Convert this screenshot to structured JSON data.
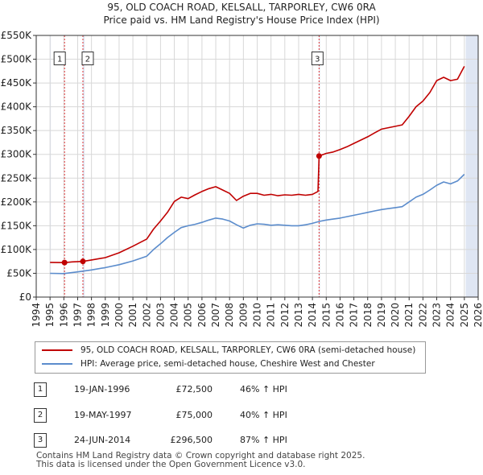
{
  "title_line1": "95, OLD COACH ROAD, KELSALL, TARPORLEY, CW6 0RA",
  "title_line2": "Price paid vs. HM Land Registry's House Price Index (HPI)",
  "colors": {
    "property": "#c00000",
    "hpi": "#5b8ccc",
    "sale_line": "#dd3333",
    "shade": "#dfe6f3",
    "grid": "#d8d8d8"
  },
  "chart_data": {
    "type": "line",
    "y_min": 0,
    "y_max": 550000,
    "x_min": 1994,
    "x_max": 2026,
    "y_ticks": [
      {
        "value": 0,
        "label": "£0"
      },
      {
        "value": 50000,
        "label": "£50K"
      },
      {
        "value": 100000,
        "label": "£100K"
      },
      {
        "value": 150000,
        "label": "£150K"
      },
      {
        "value": 200000,
        "label": "£200K"
      },
      {
        "value": 250000,
        "label": "£250K"
      },
      {
        "value": 300000,
        "label": "£300K"
      },
      {
        "value": 350000,
        "label": "£350K"
      },
      {
        "value": 400000,
        "label": "£400K"
      },
      {
        "value": 450000,
        "label": "£450K"
      },
      {
        "value": 500000,
        "label": "£500K"
      },
      {
        "value": 550000,
        "label": "£550K"
      }
    ],
    "x_ticks": [
      "1994",
      "1995",
      "1996",
      "1997",
      "1998",
      "1999",
      "2000",
      "2001",
      "2002",
      "2003",
      "2004",
      "2005",
      "2006",
      "2007",
      "2008",
      "2009",
      "2010",
      "2011",
      "2012",
      "2013",
      "2014",
      "2015",
      "2016",
      "2017",
      "2018",
      "2019",
      "2020",
      "2021",
      "2022",
      "2023",
      "2024",
      "2025",
      "2026"
    ],
    "shaded_ranges": [
      [
        1995.0,
        1995.05
      ],
      [
        1997.38,
        1997.5
      ],
      [
        2014.48,
        2014.55
      ],
      [
        2025.1,
        2026.0
      ]
    ],
    "series": [
      {
        "name": "95, OLD COACH ROAD, KELSALL, TARPORLEY, CW6 0RA (semi-detached house)",
        "key": "property",
        "x": [
          1995.0,
          1996.05,
          1996.6,
          1997.38,
          1998.0,
          1999.0,
          2000.0,
          2001.0,
          2002.0,
          2002.5,
          2003.0,
          2003.5,
          2004.0,
          2004.5,
          2005.0,
          2005.5,
          2006.0,
          2006.5,
          2007.0,
          2007.5,
          2008.0,
          2008.5,
          2009.0,
          2009.5,
          2010.0,
          2010.5,
          2011.0,
          2011.5,
          2012.0,
          2012.5,
          2013.0,
          2013.5,
          2014.0,
          2014.4,
          2014.48,
          2015.0,
          2015.5,
          2016.0,
          2016.5,
          2017.0,
          2017.5,
          2018.0,
          2018.5,
          2019.0,
          2019.5,
          2020.0,
          2020.5,
          2021.0,
          2021.5,
          2022.0,
          2022.5,
          2023.0,
          2023.5,
          2024.0,
          2024.5,
          2025.0
        ],
        "y": [
          73000,
          72500,
          74000,
          75000,
          78000,
          83000,
          93000,
          107000,
          122000,
          143000,
          160000,
          178000,
          201000,
          210000,
          207000,
          215000,
          222000,
          228000,
          232000,
          225000,
          218000,
          203000,
          212000,
          218000,
          218000,
          214000,
          216000,
          213000,
          215000,
          214000,
          216000,
          214000,
          216000,
          222000,
          296500,
          302000,
          305000,
          310000,
          316000,
          323000,
          330000,
          337000,
          345000,
          353000,
          356000,
          359000,
          362000,
          380000,
          400000,
          412000,
          430000,
          455000,
          462000,
          455000,
          458000,
          485000
        ]
      },
      {
        "name": "HPI: Average price, semi-detached house, Cheshire West and Chester",
        "key": "hpi",
        "x": [
          1995.0,
          1996.0,
          1997.0,
          1998.0,
          1999.0,
          2000.0,
          2001.0,
          2002.0,
          2002.5,
          2003.0,
          2003.5,
          2004.0,
          2004.5,
          2005.0,
          2005.5,
          2006.0,
          2006.5,
          2007.0,
          2007.5,
          2008.0,
          2008.5,
          2009.0,
          2009.5,
          2010.0,
          2010.5,
          2011.0,
          2011.5,
          2012.0,
          2012.5,
          2013.0,
          2013.5,
          2014.0,
          2014.5,
          2015.0,
          2015.5,
          2016.0,
          2016.5,
          2017.0,
          2017.5,
          2018.0,
          2018.5,
          2019.0,
          2019.5,
          2020.0,
          2020.5,
          2021.0,
          2021.5,
          2022.0,
          2022.5,
          2023.0,
          2023.5,
          2024.0,
          2024.5,
          2025.0
        ],
        "y": [
          50000,
          49500,
          53000,
          57000,
          62000,
          68000,
          76000,
          86000,
          100000,
          112000,
          125000,
          136000,
          146000,
          150000,
          153000,
          157000,
          162000,
          166000,
          164000,
          160000,
          152000,
          145000,
          151000,
          154000,
          153000,
          151000,
          152000,
          151000,
          150000,
          150000,
          152000,
          155000,
          159000,
          162000,
          164000,
          166000,
          169000,
          172000,
          175000,
          178000,
          181000,
          184000,
          186000,
          188000,
          190000,
          200000,
          210000,
          216000,
          225000,
          235000,
          242000,
          238000,
          244000,
          258000
        ]
      }
    ],
    "sales": [
      {
        "num": "1",
        "x": 1996.05,
        "y": 72500
      },
      {
        "num": "2",
        "x": 1997.38,
        "y": 75000
      },
      {
        "num": "3",
        "x": 2014.48,
        "y": 296500
      }
    ],
    "marker_label_value": 500000
  },
  "legend": {
    "property_label": "95, OLD COACH ROAD, KELSALL, TARPORLEY, CW6 0RA (semi-detached house)",
    "hpi_label": "HPI: Average price, semi-detached house, Cheshire West and Chester"
  },
  "sales_table": [
    {
      "num": "1",
      "date": "19-JAN-1996",
      "price": "£72,500",
      "hpi": "46% ↑ HPI"
    },
    {
      "num": "2",
      "date": "19-MAY-1997",
      "price": "£75,000",
      "hpi": "40% ↑ HPI"
    },
    {
      "num": "3",
      "date": "24-JUN-2014",
      "price": "£296,500",
      "hpi": "87% ↑ HPI"
    }
  ],
  "footer_line1": "Contains HM Land Registry data © Crown copyright and database right 2025.",
  "footer_line2": "This data is licensed under the Open Government Licence v3.0."
}
